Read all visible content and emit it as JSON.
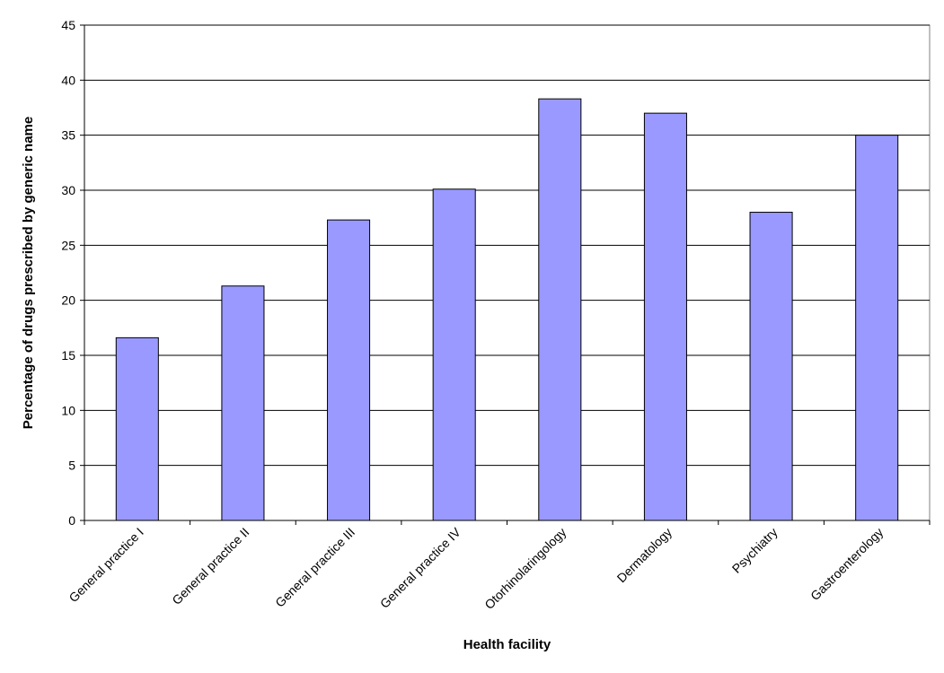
{
  "chart_data": {
    "type": "bar",
    "title": "",
    "xlabel": "Health facility",
    "ylabel": "Percentage of drugs prescribed by generic name",
    "categories": [
      "General practice I",
      "General practice II",
      "General practice III",
      "General practice IV",
      "Otorhinolaringology",
      "Dermatology",
      "Psychiatry",
      "Gastroenterology"
    ],
    "series": [
      {
        "values": [
          16.6,
          21.3,
          27.3,
          30.1,
          38.3,
          37.0,
          28.0,
          35.0
        ]
      }
    ],
    "ylim": [
      0,
      45
    ],
    "yticks": [
      0,
      5,
      10,
      15,
      20,
      25,
      30,
      35,
      40,
      45
    ],
    "grid": true,
    "legend": "none",
    "colors": {
      "bar": "#9999ff",
      "bar_border": "#000000",
      "grid": "#000000",
      "frame": "#808080"
    }
  }
}
